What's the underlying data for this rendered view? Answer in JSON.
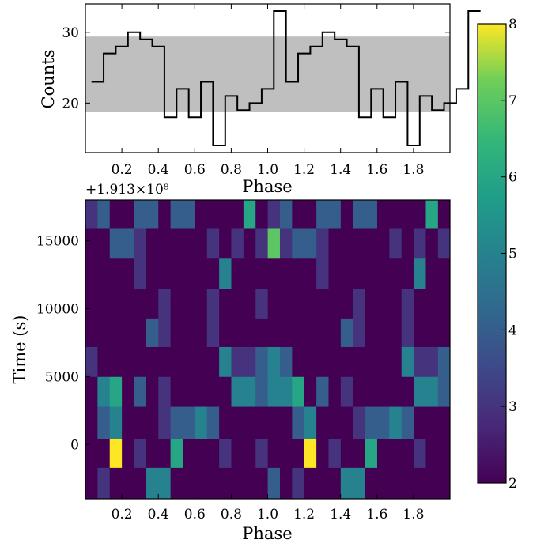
{
  "chart_data": [
    {
      "type": "line",
      "subtype": "step",
      "xlabel": "Phase",
      "ylabel": "Counts",
      "xlim": [
        0.0,
        2.0
      ],
      "ylim": [
        13,
        34
      ],
      "xticks": [
        0.2,
        0.4,
        0.6,
        0.8,
        1.0,
        1.2,
        1.4,
        1.6,
        1.8
      ],
      "xtick_labels": [
        "0.2",
        "0.4",
        "0.6",
        "0.8",
        "1.0",
        "1.2",
        "1.4",
        "1.6",
        "1.8"
      ],
      "yticks": [
        20,
        30
      ],
      "ytick_labels": [
        "20",
        "30"
      ],
      "bin_edges_start": 0.0333,
      "bin_width": 0.0667,
      "values": [
        23,
        27,
        28,
        30,
        29,
        28,
        18,
        22,
        18,
        23,
        14,
        21,
        19,
        20,
        22,
        33,
        23,
        27,
        28,
        30,
        29,
        28,
        18,
        22,
        18,
        23,
        14,
        21,
        19,
        20,
        22,
        33
      ],
      "band": [
        18.7,
        29.4
      ],
      "band_color": "#bfbfbf"
    },
    {
      "type": "heatmap",
      "xlabel": "Phase",
      "ylabel": "Time (s)",
      "offset_label": "+1.913×10⁸",
      "xlim": [
        0.0,
        2.0
      ],
      "ylim": [
        -4000,
        18000
      ],
      "xticks": [
        0.2,
        0.4,
        0.6,
        0.8,
        1.0,
        1.2,
        1.4,
        1.6,
        1.8
      ],
      "xtick_labels": [
        "0.2",
        "0.4",
        "0.6",
        "0.8",
        "1.0",
        "1.2",
        "1.4",
        "1.6",
        "1.8"
      ],
      "yticks": [
        0,
        5000,
        10000,
        15000
      ],
      "ytick_labels": [
        "0",
        "5000",
        "10000",
        "15000"
      ],
      "x_bin_width": 0.0667,
      "row_edges": [
        -4000,
        -1700,
        400,
        2800,
        5000,
        7200,
        9300,
        11500,
        13700,
        15900,
        18000
      ],
      "grid": [
        [
          2,
          3,
          2,
          2,
          2,
          5,
          5,
          2,
          2,
          2,
          2,
          2,
          2,
          2,
          2,
          4,
          2,
          3,
          2,
          2,
          2,
          5,
          5,
          2,
          2,
          2,
          2,
          2,
          2,
          2,
          2,
          4
        ],
        [
          2,
          2,
          8,
          2,
          3,
          2,
          2,
          6,
          2,
          2,
          2,
          3,
          2,
          2,
          3,
          2,
          2,
          2,
          8,
          2,
          3,
          2,
          2,
          6,
          2,
          2,
          2,
          3,
          2,
          2,
          3,
          2
        ],
        [
          2,
          4,
          5,
          2,
          2,
          2,
          3,
          4,
          4,
          5,
          4,
          2,
          2,
          2,
          2,
          2,
          2,
          4,
          5,
          2,
          2,
          2,
          3,
          4,
          4,
          5,
          4,
          2,
          2,
          2,
          2,
          2
        ],
        [
          2,
          5,
          6,
          2,
          4,
          2,
          3,
          2,
          2,
          2,
          2,
          2,
          5,
          5,
          4,
          5,
          5,
          6,
          2,
          4,
          2,
          3,
          2,
          2,
          2,
          2,
          2,
          5,
          5,
          4,
          5,
          5
        ],
        [
          3,
          2,
          2,
          2,
          2,
          2,
          2,
          2,
          2,
          2,
          2,
          5,
          3,
          3,
          4,
          5,
          4,
          2,
          2,
          2,
          2,
          2,
          2,
          2,
          2,
          2,
          5,
          3,
          3,
          4,
          5,
          4
        ],
        [
          2,
          2,
          2,
          2,
          2,
          4,
          3,
          2,
          2,
          2,
          3,
          2,
          2,
          2,
          2,
          2,
          2,
          2,
          2,
          2,
          2,
          4,
          3,
          2,
          2,
          2,
          3,
          2,
          2,
          2,
          2,
          2
        ],
        [
          2,
          2,
          2,
          2,
          2,
          2,
          3,
          2,
          2,
          2,
          3,
          2,
          2,
          2,
          3,
          2,
          2,
          2,
          2,
          2,
          2,
          2,
          3,
          2,
          2,
          2,
          3,
          2,
          2,
          2,
          3,
          3
        ],
        [
          2,
          2,
          2,
          2,
          3,
          2,
          2,
          2,
          2,
          2,
          2,
          5,
          2,
          2,
          2,
          2,
          2,
          2,
          2,
          3,
          2,
          2,
          2,
          2,
          2,
          2,
          2,
          5,
          2,
          2,
          2,
          2
        ],
        [
          2,
          2,
          4,
          4,
          3,
          2,
          2,
          2,
          2,
          2,
          3,
          2,
          3,
          2,
          3,
          7,
          3,
          4,
          4,
          3,
          2,
          2,
          2,
          2,
          2,
          3,
          2,
          3,
          2,
          3,
          2,
          7
        ],
        [
          3,
          4,
          2,
          2,
          4,
          4,
          2,
          4,
          4,
          2,
          2,
          2,
          2,
          6,
          2,
          3,
          4,
          2,
          2,
          4,
          4,
          2,
          4,
          4,
          2,
          2,
          2,
          2,
          6,
          2,
          3,
          2
        ]
      ],
      "colorbar": {
        "cmap": "viridis",
        "vmin": 2,
        "vmax": 8,
        "ticks": [
          2,
          3,
          4,
          5,
          6,
          7,
          8
        ],
        "tick_labels": [
          "2",
          "3",
          "4",
          "5",
          "6",
          "7",
          "8"
        ]
      }
    }
  ]
}
